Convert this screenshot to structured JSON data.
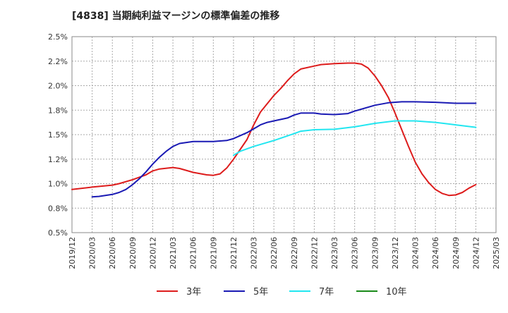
{
  "chart_data": {
    "type": "line",
    "title": "[4838]  当期純利益マージンの標準偏差の推移",
    "xlabel": "",
    "ylabel": "",
    "ylim": [
      0.5,
      2.5
    ],
    "y_ticks": [
      0.5,
      0.75,
      1.0,
      1.25,
      1.5,
      1.75,
      2.0,
      2.25,
      2.5
    ],
    "y_tick_labels": [
      "0.5%",
      "0.8%",
      "1.0%",
      "1.2%",
      "1.5%",
      "1.8%",
      "2.0%",
      "2.2%",
      "2.5%"
    ],
    "x_tick_labels": [
      "2019/12",
      "2020/03",
      "2020/06",
      "2020/09",
      "2020/12",
      "2021/03",
      "2021/06",
      "2021/09",
      "2021/12",
      "2022/03",
      "2022/06",
      "2022/09",
      "2022/12",
      "2023/03",
      "2023/06",
      "2023/09",
      "2023/12",
      "2024/03",
      "2024/06",
      "2024/09",
      "2024/12",
      "2025/03"
    ],
    "grid": true,
    "legend_position": "bottom",
    "series": [
      {
        "name": "3年",
        "color": "#dd1c1c",
        "points": [
          [
            "2019/12",
            0.94
          ],
          [
            "2020/03",
            0.965
          ],
          [
            "2020/06",
            0.985
          ],
          [
            "2020/07",
            1.0
          ],
          [
            "2020/09",
            1.04
          ],
          [
            "2020/11",
            1.09
          ],
          [
            "2020/12",
            1.13
          ],
          [
            "2021/01",
            1.15
          ],
          [
            "2021/03",
            1.165
          ],
          [
            "2021/04",
            1.155
          ],
          [
            "2021/06",
            1.115
          ],
          [
            "2021/08",
            1.09
          ],
          [
            "2021/09",
            1.085
          ],
          [
            "2021/10",
            1.1
          ],
          [
            "2021/11",
            1.16
          ],
          [
            "2021/12",
            1.25
          ],
          [
            "2022/02",
            1.45
          ],
          [
            "2022/03",
            1.6
          ],
          [
            "2022/04",
            1.73
          ],
          [
            "2022/06",
            1.9
          ],
          [
            "2022/07",
            1.97
          ],
          [
            "2022/08",
            2.05
          ],
          [
            "2022/09",
            2.12
          ],
          [
            "2022/10",
            2.17
          ],
          [
            "2022/12",
            2.2
          ],
          [
            "2023/01",
            2.215
          ],
          [
            "2023/03",
            2.225
          ],
          [
            "2023/05",
            2.23
          ],
          [
            "2023/06",
            2.23
          ],
          [
            "2023/07",
            2.22
          ],
          [
            "2023/08",
            2.18
          ],
          [
            "2023/09",
            2.1
          ],
          [
            "2023/10",
            2.0
          ],
          [
            "2023/11",
            1.88
          ],
          [
            "2023/12",
            1.72
          ],
          [
            "2024/01",
            1.55
          ],
          [
            "2024/02",
            1.38
          ],
          [
            "2024/03",
            1.22
          ],
          [
            "2024/04",
            1.1
          ],
          [
            "2024/05",
            1.01
          ],
          [
            "2024/06",
            0.94
          ],
          [
            "2024/07",
            0.9
          ],
          [
            "2024/08",
            0.88
          ],
          [
            "2024/09",
            0.885
          ],
          [
            "2024/10",
            0.91
          ],
          [
            "2024/11",
            0.955
          ],
          [
            "2024/12",
            0.99
          ]
        ]
      },
      {
        "name": "5年",
        "color": "#1a1ab4",
        "points": [
          [
            "2020/03",
            0.865
          ],
          [
            "2020/04",
            0.87
          ],
          [
            "2020/06",
            0.89
          ],
          [
            "2020/07",
            0.91
          ],
          [
            "2020/08",
            0.94
          ],
          [
            "2020/09",
            0.99
          ],
          [
            "2020/10",
            1.05
          ],
          [
            "2020/11",
            1.12
          ],
          [
            "2020/12",
            1.2
          ],
          [
            "2021/01",
            1.27
          ],
          [
            "2021/02",
            1.33
          ],
          [
            "2021/03",
            1.38
          ],
          [
            "2021/04",
            1.41
          ],
          [
            "2021/06",
            1.43
          ],
          [
            "2021/09",
            1.43
          ],
          [
            "2021/11",
            1.44
          ],
          [
            "2021/12",
            1.46
          ],
          [
            "2022/02",
            1.52
          ],
          [
            "2022/03",
            1.56
          ],
          [
            "2022/04",
            1.6
          ],
          [
            "2022/05",
            1.625
          ],
          [
            "2022/06",
            1.64
          ],
          [
            "2022/08",
            1.67
          ],
          [
            "2022/09",
            1.7
          ],
          [
            "2022/10",
            1.72
          ],
          [
            "2022/12",
            1.72
          ],
          [
            "2023/01",
            1.71
          ],
          [
            "2023/03",
            1.705
          ],
          [
            "2023/05",
            1.715
          ],
          [
            "2023/06",
            1.74
          ],
          [
            "2023/09",
            1.8
          ],
          [
            "2023/11",
            1.825
          ],
          [
            "2024/01",
            1.835
          ],
          [
            "2024/03",
            1.835
          ],
          [
            "2024/06",
            1.83
          ],
          [
            "2024/09",
            1.82
          ],
          [
            "2024/12",
            1.82
          ]
        ]
      },
      {
        "name": "7年",
        "color": "#22e6f0",
        "points": [
          [
            "2021/12",
            1.29
          ],
          [
            "2022/01",
            1.33
          ],
          [
            "2022/03",
            1.38
          ],
          [
            "2022/06",
            1.44
          ],
          [
            "2022/09",
            1.51
          ],
          [
            "2022/10",
            1.535
          ],
          [
            "2022/12",
            1.55
          ],
          [
            "2023/03",
            1.555
          ],
          [
            "2023/06",
            1.58
          ],
          [
            "2023/09",
            1.615
          ],
          [
            "2023/12",
            1.64
          ],
          [
            "2024/03",
            1.64
          ],
          [
            "2024/06",
            1.625
          ],
          [
            "2024/09",
            1.6
          ],
          [
            "2024/12",
            1.575
          ]
        ]
      },
      {
        "name": "10年",
        "color": "#1a8a1a",
        "points": []
      }
    ]
  }
}
